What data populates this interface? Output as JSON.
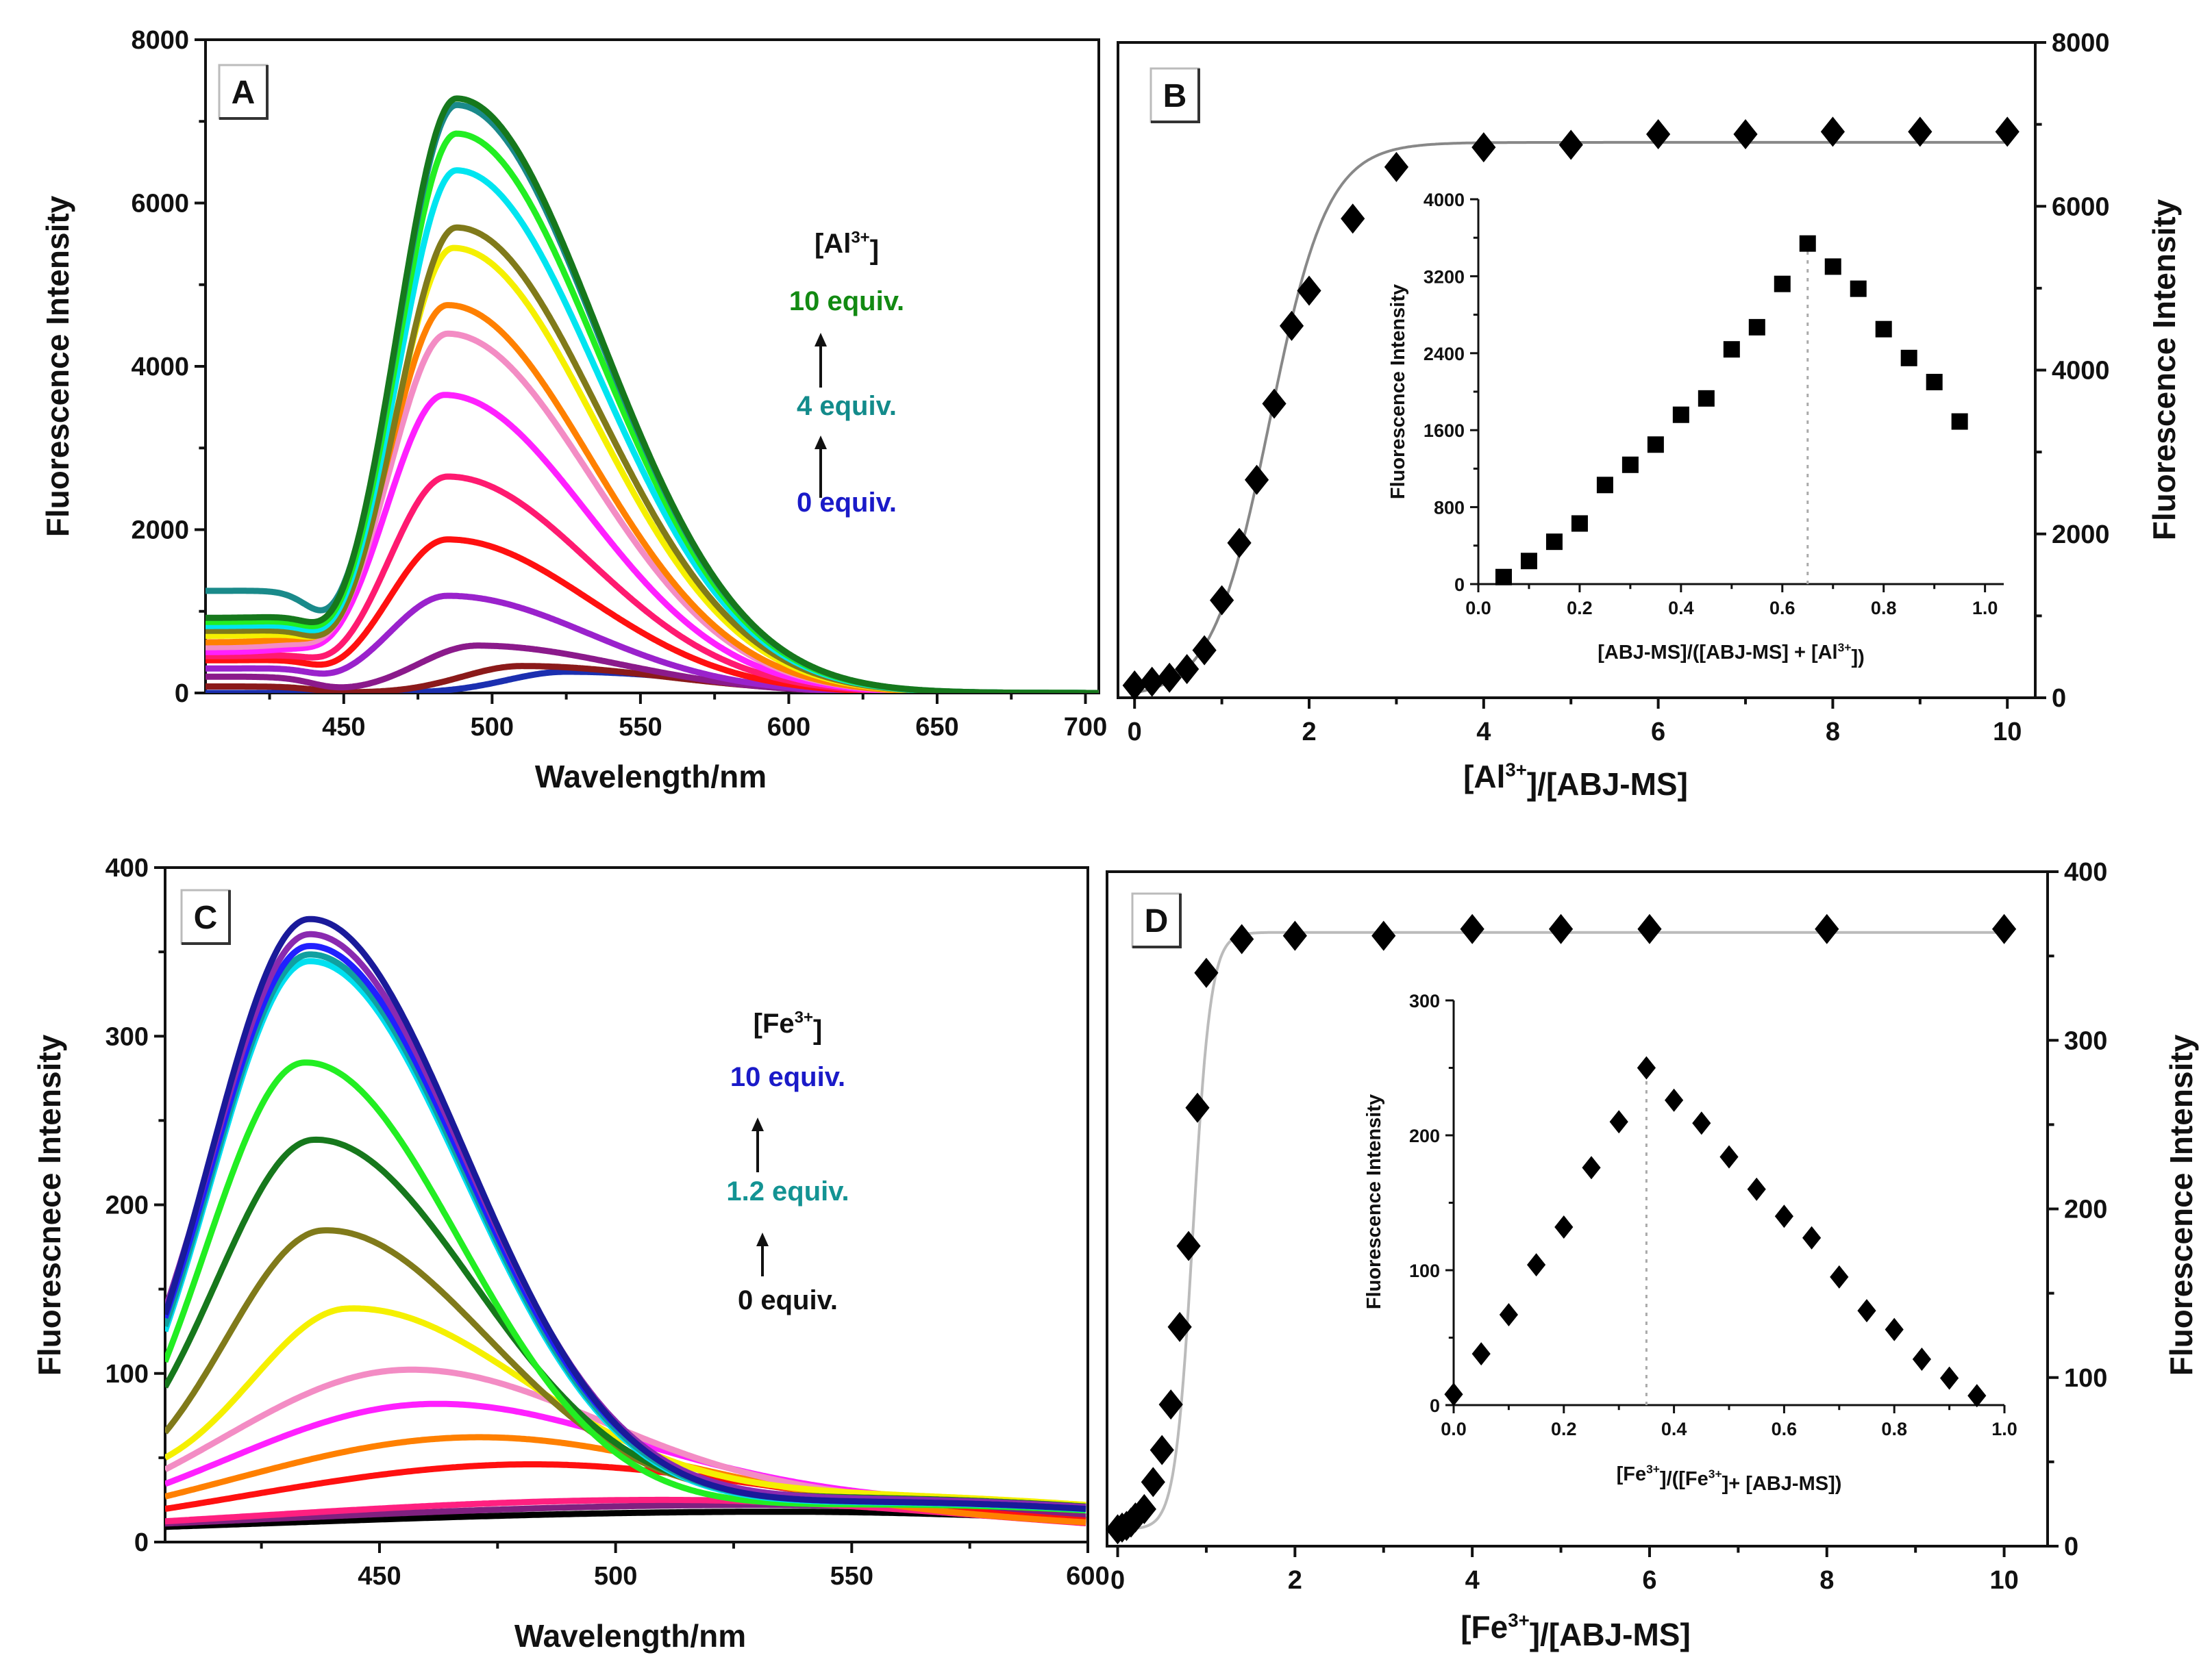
{
  "chart_data": [
    {
      "panel": "A",
      "type": "line",
      "label": "A",
      "xlabel": "Wavelength/nm",
      "ylabel": "Fluorescence Intensity",
      "xlim": [
        403.4,
        704.5
      ],
      "ylim": [
        0,
        8000
      ],
      "xticks": [
        450,
        500,
        550,
        600,
        650,
        700
      ],
      "yticks": [
        0,
        2000,
        4000,
        6000,
        8000
      ],
      "xtick_labels": [
        "450",
        "500",
        "550",
        "600",
        "650",
        "700"
      ],
      "ytick_labels": [
        "0",
        "2000",
        "4000",
        "6000",
        "8000"
      ],
      "legend_title": [
        "[Al",
        "3+",
        "]"
      ],
      "legend_levels": [
        {
          "text": "10 equiv.",
          "color": "#128a12"
        },
        {
          "text": "4 equiv.",
          "color": "#138b8b"
        },
        {
          "text": "0 equiv.",
          "color": "#1a1ac8"
        }
      ],
      "series": [
        {
          "color": "#1b2fb0",
          "peak_nm": 525,
          "peak_intensity": 260,
          "start_intensity": 0
        },
        {
          "color": "#8b1a1a",
          "peak_nm": 510,
          "peak_intensity": 330,
          "start_intensity": 80
        },
        {
          "color": "#8b1a8b",
          "peak_nm": 495,
          "peak_intensity": 580,
          "start_intensity": 200
        },
        {
          "color": "#9a22cc",
          "peak_nm": 485,
          "peak_intensity": 1190,
          "start_intensity": 300
        },
        {
          "color": "#ff1010",
          "peak_nm": 485,
          "peak_intensity": 1880,
          "start_intensity": 400
        },
        {
          "color": "#ff1a70",
          "peak_nm": 485,
          "peak_intensity": 2650,
          "start_intensity": 450
        },
        {
          "color": "#ff20ff",
          "peak_nm": 484,
          "peak_intensity": 3650,
          "start_intensity": 500
        },
        {
          "color": "#f38cc4",
          "peak_nm": 485,
          "peak_intensity": 4400,
          "start_intensity": 560
        },
        {
          "color": "#ff8000",
          "peak_nm": 485,
          "peak_intensity": 4750,
          "start_intensity": 620
        },
        {
          "color": "#f5f000",
          "peak_nm": 487,
          "peak_intensity": 5450,
          "start_intensity": 700
        },
        {
          "color": "#807a1a",
          "peak_nm": 488,
          "peak_intensity": 5700,
          "start_intensity": 760
        },
        {
          "color": "#00e5f0",
          "peak_nm": 488,
          "peak_intensity": 6400,
          "start_intensity": 820
        },
        {
          "color": "#22ee22",
          "peak_nm": 488,
          "peak_intensity": 6850,
          "start_intensity": 870
        },
        {
          "color": "#1a8a8a",
          "peak_nm": 488,
          "peak_intensity": 7200,
          "start_intensity": 1250
        },
        {
          "color": "#16781c",
          "peak_nm": 488,
          "peak_intensity": 7280,
          "start_intensity": 920
        }
      ]
    },
    {
      "panel": "B",
      "type": "scatter",
      "label": "B",
      "xlabel": [
        "[Al",
        "3+",
        "]/[ABJ-MS]"
      ],
      "ylabel": "Fluorescence Intensity",
      "xlim": [
        -0.19,
        10.32
      ],
      "ylim": [
        0,
        8000
      ],
      "xticks": [
        0,
        2,
        4,
        6,
        8,
        10
      ],
      "yticks": [
        0,
        2000,
        4000,
        6000,
        8000
      ],
      "xtick_labels": [
        "0",
        "2",
        "4",
        "6",
        "8",
        "10"
      ],
      "ytick_labels": [
        "0",
        "2000",
        "4000",
        "6000",
        "8000"
      ],
      "x": [
        0,
        0.2,
        0.4,
        0.6,
        0.8,
        1.0,
        1.2,
        1.4,
        1.6,
        1.8,
        2.0,
        2.5,
        3,
        4,
        5,
        6,
        7,
        8,
        9,
        10
      ],
      "y": [
        150,
        195,
        245,
        350,
        580,
        1190,
        1890,
        2660,
        3590,
        4540,
        4970,
        5850,
        6480,
        6720,
        6750,
        6880,
        6880,
        6910,
        6910,
        6910
      ],
      "fit": {
        "type": "sigmoid",
        "baseline": 0,
        "plateau": 6780,
        "x0": 1.55,
        "k": 0.33
      },
      "inset": {
        "type": "scatter",
        "xlabel": [
          "[ABJ-MS]/([ABJ-MS] + [Al",
          "3+",
          "])"
        ],
        "ylabel": "Fluorescence Intensity",
        "xlim": [
          0,
          1.037
        ],
        "ylim": [
          0,
          4000
        ],
        "xticks": [
          0,
          0.2,
          0.4,
          0.6,
          0.8,
          1.0
        ],
        "yticks": [
          0,
          800,
          1600,
          2400,
          3200,
          4000
        ],
        "xtick_labels": [
          "0.0",
          "0.2",
          "0.4",
          "0.6",
          "0.8",
          "1.0"
        ],
        "ytick_labels": [
          "0",
          "800",
          "1600",
          "2400",
          "3200",
          "4000"
        ],
        "x": [
          0.05,
          0.1,
          0.15,
          0.2,
          0.25,
          0.3,
          0.35,
          0.4,
          0.45,
          0.5,
          0.55,
          0.6,
          0.65,
          0.7,
          0.75,
          0.8,
          0.85,
          0.9,
          0.95
        ],
        "y": [
          73,
          240,
          440,
          630,
          1030,
          1240,
          1450,
          1760,
          1930,
          2440,
          2670,
          3120,
          3540,
          3300,
          3070,
          2650,
          2350,
          2100,
          1690
        ],
        "max_x": 0.65
      }
    },
    {
      "panel": "C",
      "type": "line",
      "label": "C",
      "xlabel": "Wavelength/nm",
      "ylabel": "Fluorescnece Intensity",
      "xlim": [
        404.6,
        600
      ],
      "ylim": [
        0,
        400
      ],
      "xticks": [
        450,
        500,
        550,
        600
      ],
      "yticks": [
        0,
        100,
        200,
        300,
        400
      ],
      "xtick_labels": [
        "450",
        "500",
        "550",
        "600"
      ],
      "ytick_labels": [
        "0",
        "100",
        "200",
        "300",
        "400"
      ],
      "legend_title": [
        "[Fe",
        "3+",
        "]"
      ],
      "legend_levels": [
        {
          "text": "10 equiv.",
          "color": "#1a1ac8"
        },
        {
          "text": "1.2 equiv.",
          "color": "#139393"
        },
        {
          "text": "0 equiv.",
          "color": "#111111"
        }
      ],
      "series": [
        {
          "color": "#000000",
          "peak_nm": 535,
          "peak_intensity": 18,
          "start_intensity": 1
        },
        {
          "color": "#802080",
          "peak_nm": 530,
          "peak_intensity": 22,
          "start_intensity": 2
        },
        {
          "color": "#ff2080",
          "peak_nm": 510,
          "peak_intensity": 25,
          "start_intensity": 10
        },
        {
          "color": "#ff1010",
          "peak_nm": 475,
          "peak_intensity": 40,
          "start_intensity": 16
        },
        {
          "color": "#ff8000",
          "peak_nm": 467,
          "peak_intensity": 57,
          "start_intensity": 22
        },
        {
          "color": "#ff20ff",
          "peak_nm": 458,
          "peak_intensity": 74,
          "start_intensity": 27
        },
        {
          "color": "#f38cc4",
          "peak_nm": 454,
          "peak_intensity": 95,
          "start_intensity": 43
        },
        {
          "color": "#f5f000",
          "peak_nm": 443,
          "peak_intensity": 133,
          "start_intensity": 50
        },
        {
          "color": "#807a1a",
          "peak_nm": 438,
          "peak_intensity": 180,
          "start_intensity": 65
        },
        {
          "color": "#16781c",
          "peak_nm": 436,
          "peak_intensity": 234,
          "start_intensity": 92
        },
        {
          "color": "#22ee22",
          "peak_nm": 434,
          "peak_intensity": 280,
          "start_intensity": 105
        },
        {
          "color": "#00e0f0",
          "peak_nm": 435,
          "peak_intensity": 340,
          "start_intensity": 125
        },
        {
          "color": "#10a0a0",
          "peak_nm": 435,
          "peak_intensity": 344,
          "start_intensity": 128
        },
        {
          "color": "#2020ff",
          "peak_nm": 435,
          "peak_intensity": 349,
          "start_intensity": 133
        },
        {
          "color": "#8a2ab0",
          "peak_nm": 435,
          "peak_intensity": 356,
          "start_intensity": 138
        },
        {
          "color": "#1a1a9a",
          "peak_nm": 435,
          "peak_intensity": 365,
          "start_intensity": 135
        }
      ]
    },
    {
      "panel": "D",
      "type": "scatter",
      "label": "D",
      "xlabel": [
        "[Fe",
        "3+",
        "]/[ABJ-MS]"
      ],
      "ylabel": "Fluorescence Intensity",
      "xlim": [
        -0.12,
        10.49
      ],
      "ylim": [
        0,
        400
      ],
      "xticks": [
        0,
        2,
        4,
        6,
        8,
        10
      ],
      "yticks": [
        0,
        100,
        200,
        300,
        400
      ],
      "xtick_labels": [
        "0",
        "2",
        "4",
        "6",
        "8",
        "10"
      ],
      "ytick_labels": [
        "0",
        "100",
        "200",
        "300",
        "400"
      ],
      "x": [
        0,
        0.05,
        0.1,
        0.15,
        0.2,
        0.3,
        0.4,
        0.5,
        0.6,
        0.7,
        0.8,
        0.9,
        1.0,
        1.4,
        2,
        3,
        4,
        5,
        6,
        8,
        10
      ],
      "y": [
        10,
        11,
        12,
        14,
        17,
        22,
        38,
        57,
        84,
        130,
        178,
        260,
        340,
        360,
        362,
        362,
        366,
        366,
        366,
        366,
        366
      ],
      "fit": {
        "type": "sigmoid",
        "baseline": 10,
        "plateau": 364,
        "x0": 0.85,
        "k": 0.1
      },
      "inset": {
        "type": "scatter",
        "xlabel": [
          "[Fe",
          "3+",
          "]/([Fe",
          "3+",
          "]+ [ABJ-MS])"
        ],
        "ylabel": "Fluorescence Intensity",
        "xlim": [
          0,
          1.0
        ],
        "ylim": [
          0,
          300
        ],
        "xticks": [
          0,
          0.2,
          0.4,
          0.6,
          0.8,
          1.0
        ],
        "yticks": [
          0,
          100,
          200,
          300
        ],
        "xtick_labels": [
          "0.0",
          "0.2",
          "0.4",
          "0.6",
          "0.8",
          "1.0"
        ],
        "ytick_labels": [
          "0",
          "100",
          "200",
          "300"
        ],
        "x": [
          0,
          0.05,
          0.1,
          0.15,
          0.2,
          0.25,
          0.3,
          0.35,
          0.4,
          0.45,
          0.5,
          0.55,
          0.6,
          0.65,
          0.7,
          0.75,
          0.8,
          0.85,
          0.9,
          0.95
        ],
        "y": [
          8,
          38,
          67,
          104,
          132,
          176,
          210,
          250,
          226,
          209,
          184,
          160,
          140,
          124,
          95,
          70,
          56,
          34,
          20,
          7
        ],
        "max_x": 0.35
      }
    }
  ]
}
